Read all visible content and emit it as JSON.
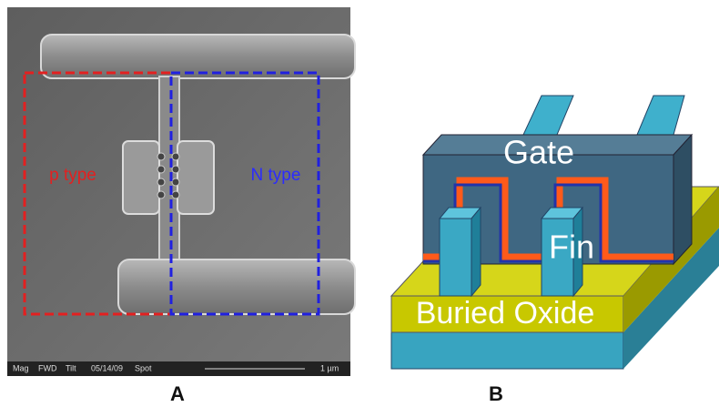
{
  "panel_a": {
    "labels": [
      "p type",
      "N type"
    ],
    "scale_bar": [
      "Mag",
      "FWD",
      "Tilt",
      "05/14/09",
      "Spot",
      "1 µm"
    ],
    "caption": "A"
  },
  "panel_b": {
    "gate": "Gate",
    "fin": "Fin",
    "oxide": "Buried Oxide",
    "caption": "B"
  }
}
